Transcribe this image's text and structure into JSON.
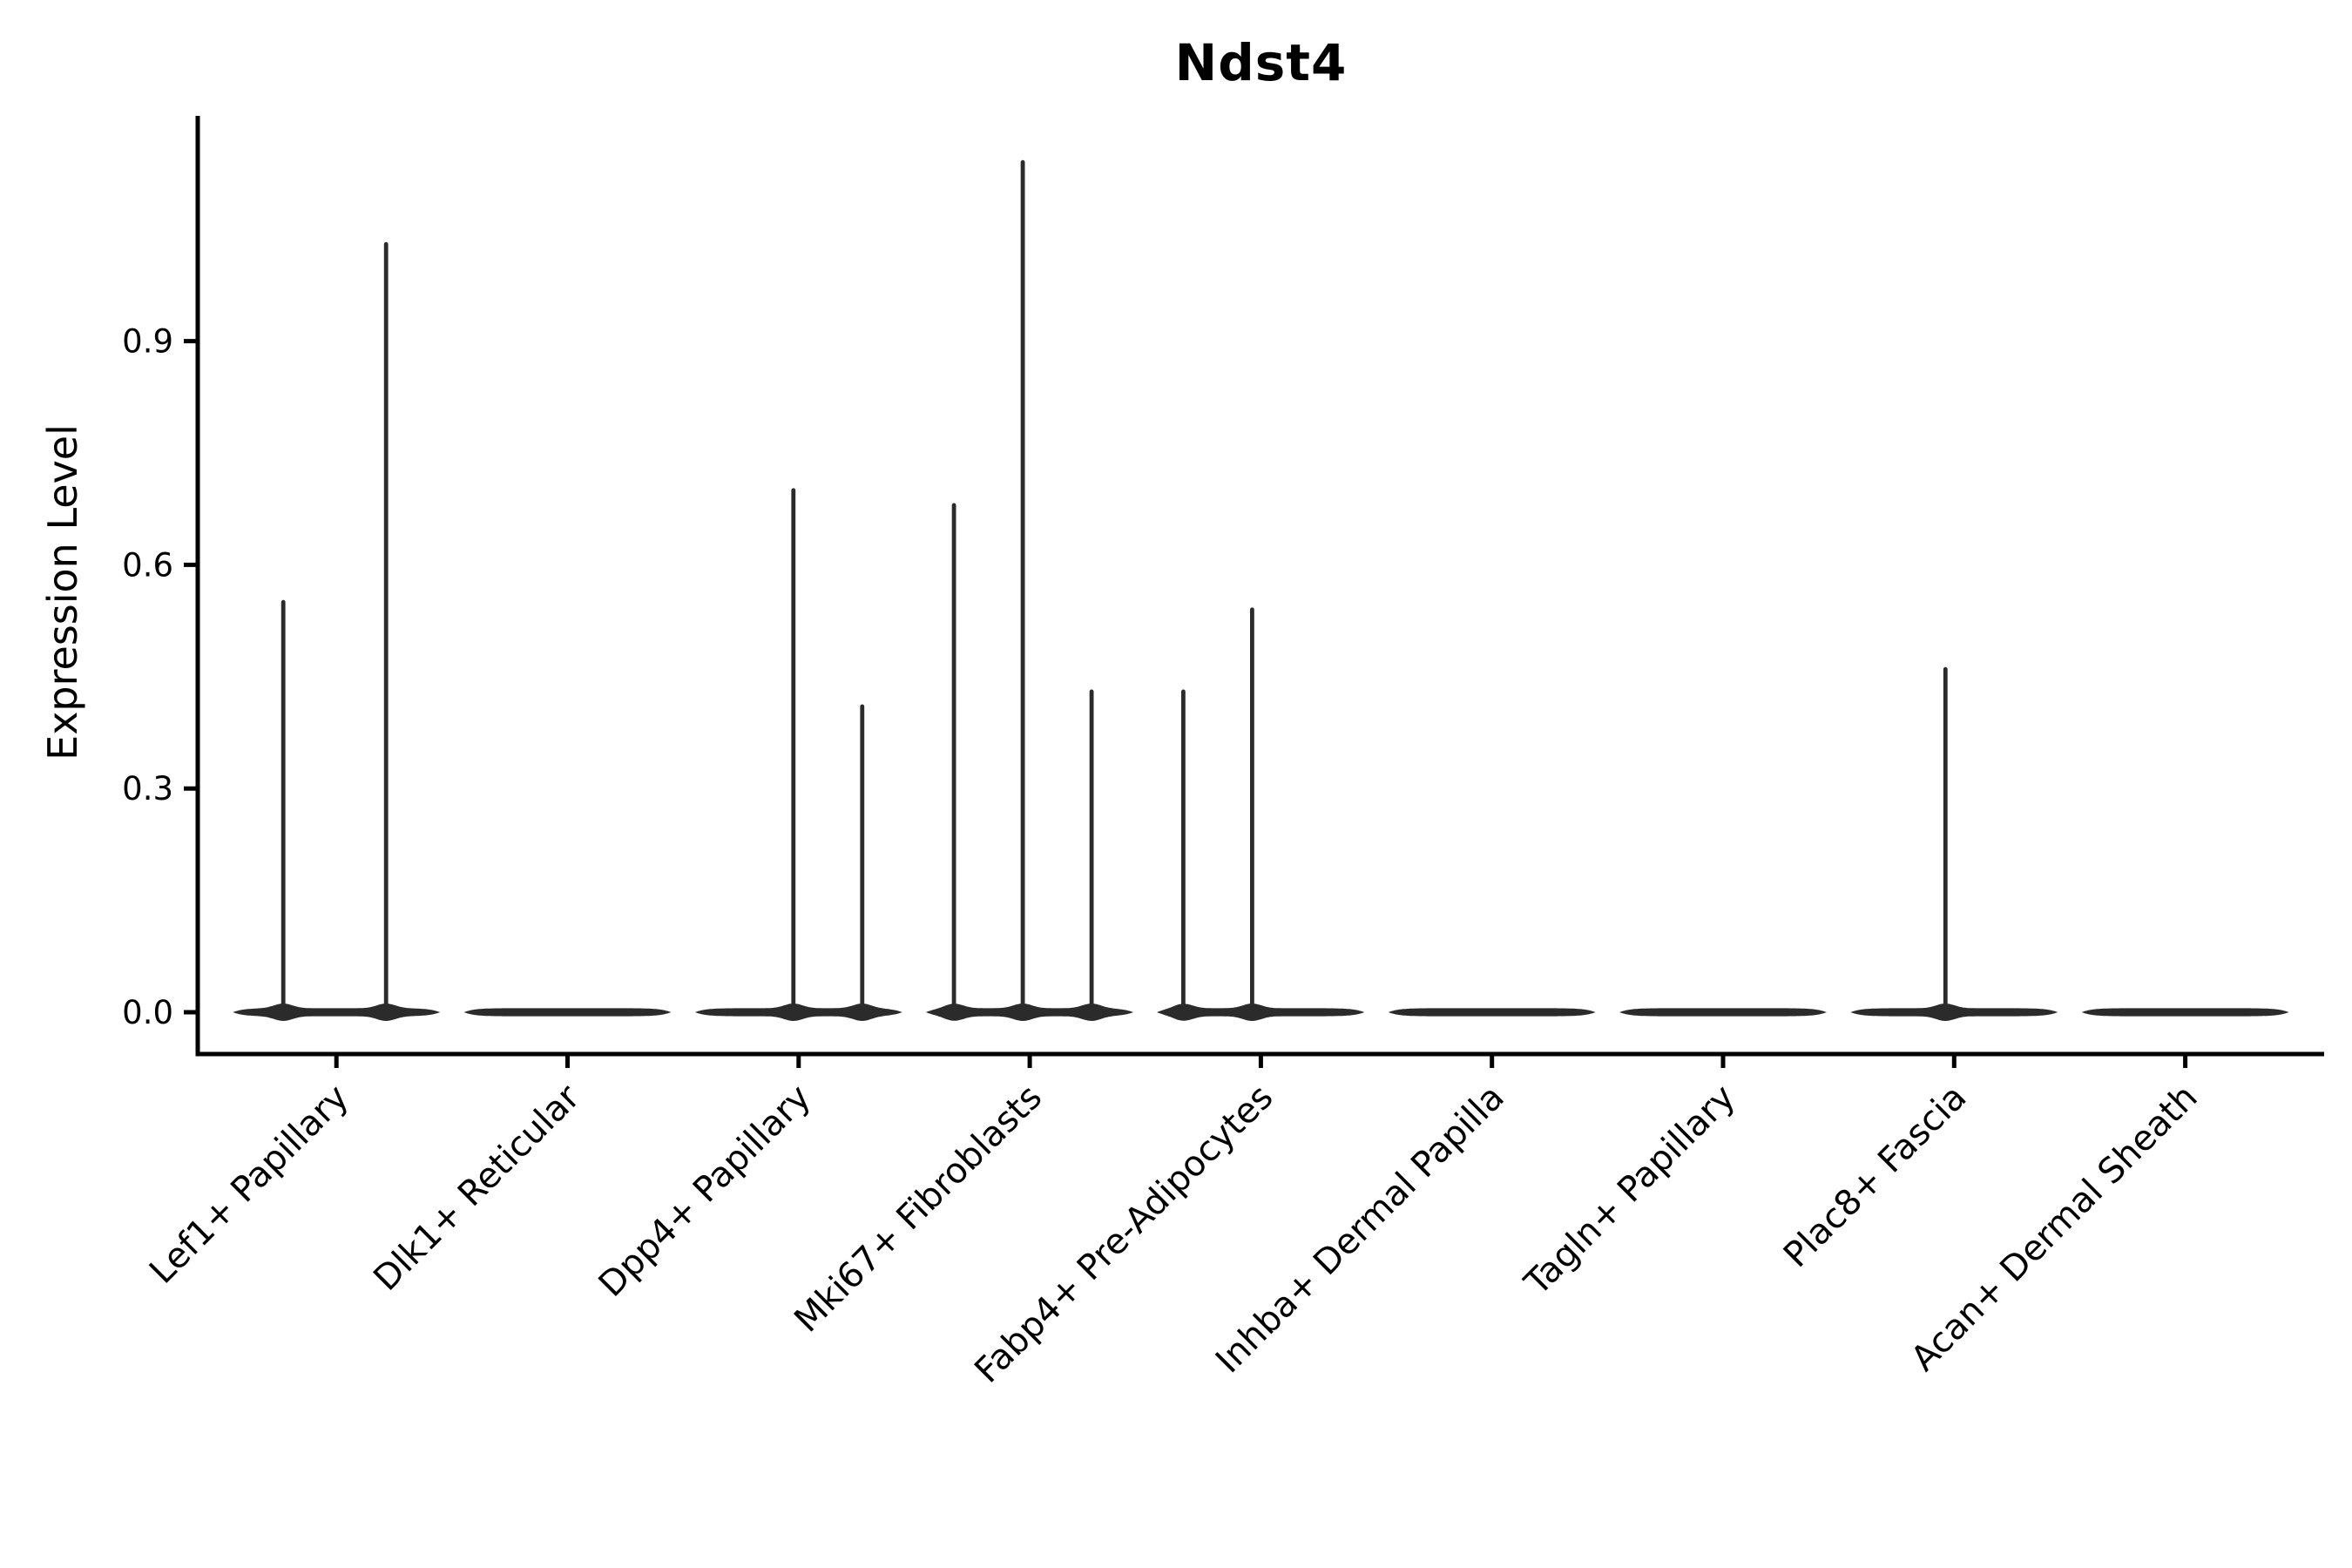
{
  "chart_data": {
    "type": "violin",
    "title": "Ndst4",
    "xlabel": "",
    "ylabel": "Expression Level",
    "grid": false,
    "legend": "none",
    "ylim": [
      -0.06,
      1.2
    ],
    "yticks": [
      {
        "value": 0.0,
        "label": "0.0"
      },
      {
        "value": 0.3,
        "label": "0.3"
      },
      {
        "value": 0.6,
        "label": "0.6"
      },
      {
        "value": 0.9,
        "label": "0.9"
      }
    ],
    "categories": [
      "Lef1+ Papillary",
      "Dlk1+ Reticular",
      "Dpp4+ Papillary",
      "Mki67+ Fibroblasts",
      "Fabp4+ Pre-Adipocytes",
      "Inhba+ Dermal Papilla",
      "Tagln+ Papillary",
      "Plac8+ Fascia",
      "Acan+ Dermal Sheath"
    ],
    "violins": [
      {
        "category": "Lef1+ Papillary",
        "baseline_value": 0.0,
        "spikes": [
          {
            "dx": -61,
            "value": 0.55
          },
          {
            "dx": 57,
            "value": 1.03
          }
        ]
      },
      {
        "category": "Dlk1+ Reticular",
        "baseline_value": 0.0,
        "spikes": []
      },
      {
        "category": "Dpp4+ Papillary",
        "baseline_value": 0.0,
        "spikes": [
          {
            "dx": -6,
            "value": 0.7
          },
          {
            "dx": 73,
            "value": 0.41
          }
        ]
      },
      {
        "category": "Mki67+ Fibroblasts",
        "baseline_value": 0.0,
        "spikes": [
          {
            "dx": -87,
            "value": 0.68
          },
          {
            "dx": -8,
            "value": 1.14
          },
          {
            "dx": 71,
            "value": 0.43
          }
        ]
      },
      {
        "category": "Fabp4+ Pre-Adipocytes",
        "baseline_value": 0.0,
        "spikes": [
          {
            "dx": -89,
            "value": 0.43
          },
          {
            "dx": -10,
            "value": 0.54
          }
        ]
      },
      {
        "category": "Inhba+ Dermal Papilla",
        "baseline_value": 0.0,
        "spikes": []
      },
      {
        "category": "Tagln+ Papillary",
        "baseline_value": 0.0,
        "spikes": []
      },
      {
        "category": "Plac8+ Fascia",
        "baseline_value": 0.0,
        "spikes": [
          {
            "dx": -10,
            "value": 0.46
          }
        ]
      },
      {
        "category": "Acan+ Dermal Sheath",
        "baseline_value": 0.0,
        "spikes": []
      }
    ],
    "colors": {
      "violin": "#2b2b2b",
      "axis": "#000000",
      "text": "#000000",
      "background": "#ffffff"
    }
  }
}
